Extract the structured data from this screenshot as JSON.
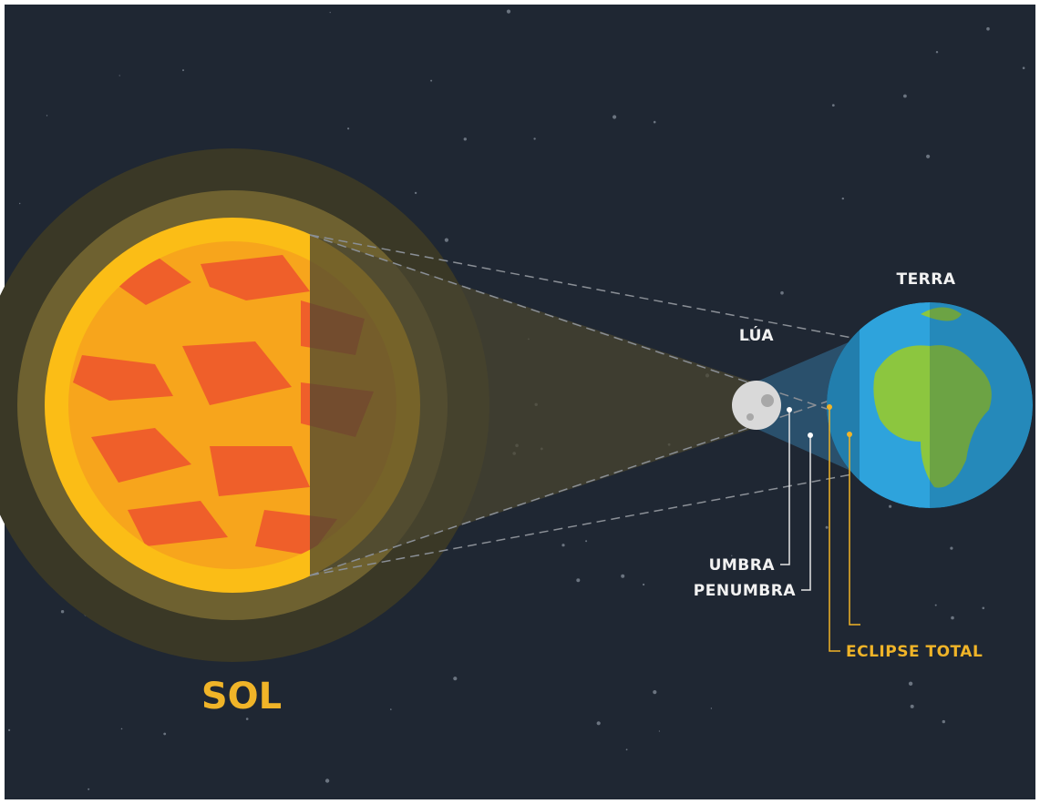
{
  "labels": {
    "sun": "SOL",
    "moon": "LÚA",
    "earth": "TERRA",
    "umbra": "UMBRA",
    "penumbra": "PENUMBRA",
    "total_eclipse": "ECLIPSE TOTAL"
  }
}
